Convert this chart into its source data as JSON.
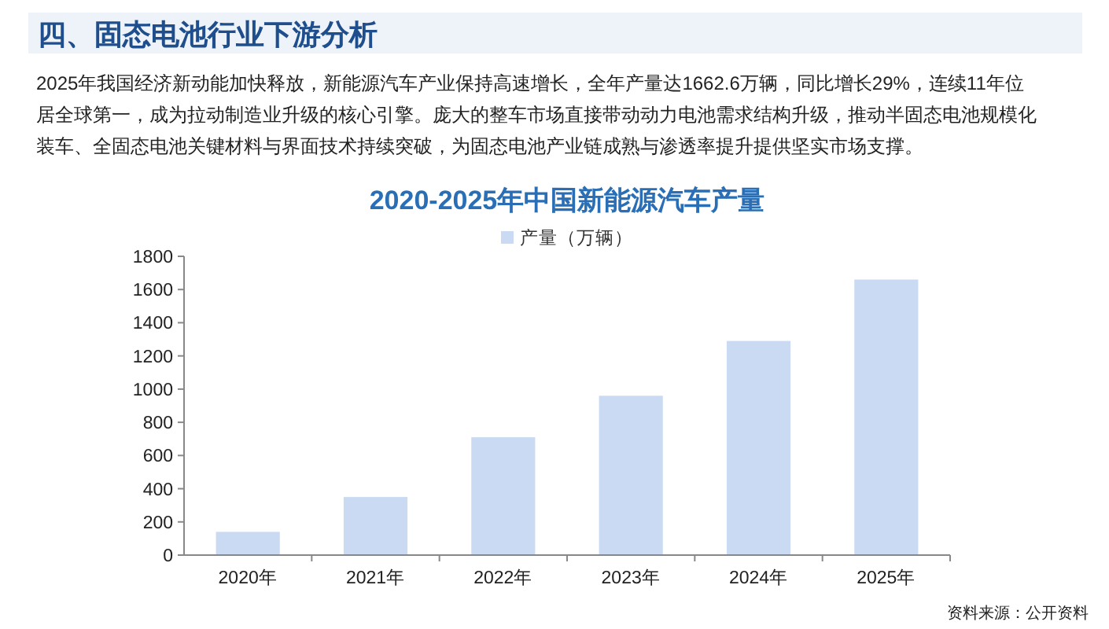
{
  "chart_data": {
    "type": "bar",
    "title": "2020-2025年中国新能源汽车产量",
    "annotations": [
      "四、固态电池行业下游分析",
      "2025年我国经济新动能加快释放，新能源汽车产业保持高速增长，全年产量达1662.6万辆，同比增长29%，连续11年位居全球第一，成为拉动制造业升级的核心引擎。庞大的整车市场直接带动动力电池需求结构升级，推动半固态电池规模化装车、全固态电池关键材料与界面技术持续突破，为固态电池产业链成熟与渗透率提升提供坚实市场支撑。",
      "资料来源：公开资料"
    ],
    "categories": [
      "2020年",
      "2021年",
      "2022年",
      "2023年",
      "2024年",
      "2025年"
    ],
    "series": [
      {
        "name": "产量（万辆）",
        "color": "#c9daf2",
        "values": [
          140,
          350,
          710,
          960,
          1290,
          1660
        ]
      }
    ],
    "ylim": [
      0,
      1800
    ],
    "yticks": [
      0,
      200,
      400,
      600,
      800,
      1000,
      1200,
      1400,
      1600,
      1800
    ],
    "legend": "top",
    "grid": false
  }
}
